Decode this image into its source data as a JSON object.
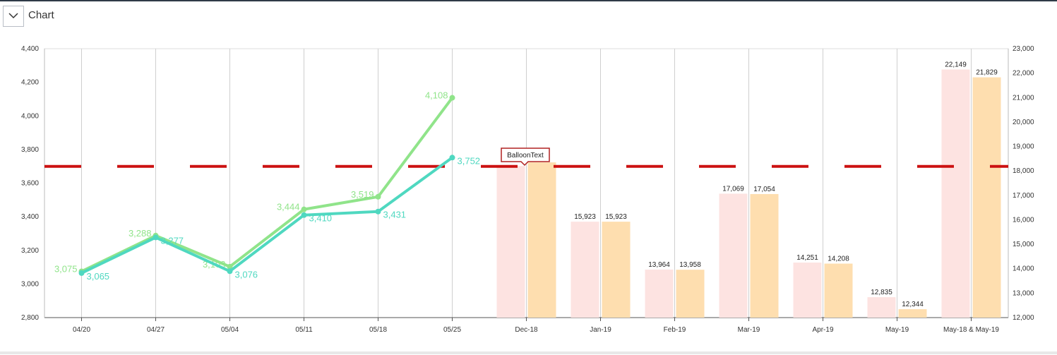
{
  "header": {
    "title": "Chart",
    "toggle_icon": "chevron-down-icon"
  },
  "chart_data": {
    "type": "bar",
    "categories": [
      "04/20",
      "04/27",
      "05/04",
      "05/11",
      "05/18",
      "05/25",
      "Dec-18",
      "Jan-19",
      "Feb-19",
      "Mar-19",
      "Apr-19",
      "May-19",
      "May-18 & May-19"
    ],
    "left_axis": {
      "ylim": [
        2800,
        4400
      ],
      "ticks": [
        "2,800",
        "3,000",
        "3,200",
        "3,400",
        "3,600",
        "3,800",
        "4,000",
        "4,200",
        "4,400"
      ]
    },
    "right_axis": {
      "ylim": [
        12000,
        23000
      ],
      "ticks": [
        "12,000",
        "13,000",
        "14,000",
        "15,000",
        "16,000",
        "17,000",
        "18,000",
        "19,000",
        "20,000",
        "21,000",
        "22,000",
        "23,000"
      ]
    },
    "line_series": [
      {
        "color": "#90e48a",
        "values": [
          3075,
          3288,
          3103,
          3444,
          3519,
          4108
        ],
        "labels": [
          "3,075",
          "3,288",
          "3,103",
          "3,444",
          "3,519",
          "4,108"
        ]
      },
      {
        "color": "#4fd8c0",
        "values": [
          3065,
          3277,
          3076,
          3410,
          3431,
          3752
        ],
        "labels": [
          "3,065",
          "3,277",
          "3,076",
          "3,410",
          "3,431",
          "3,752"
        ]
      }
    ],
    "bar_series": [
      {
        "color": "#fde3e1",
        "values": [
          18200,
          15923,
          13964,
          17069,
          14251,
          12835,
          22149
        ],
        "labels": [
          "",
          "15,923",
          "13,964",
          "17,069",
          "14,251",
          "12,835",
          "22,149"
        ]
      },
      {
        "color": "#fedeaf",
        "values": [
          18350,
          15923,
          13958,
          17054,
          14208,
          12344,
          21829
        ],
        "labels": [
          "",
          "15,923",
          "13,958",
          "17,054",
          "14,208",
          "12,344",
          "21,829"
        ]
      }
    ],
    "target_line": {
      "value": 3700,
      "color": "#cc1111",
      "style": "dashed"
    },
    "balloon": {
      "text": "BalloonText"
    },
    "grid": true
  }
}
